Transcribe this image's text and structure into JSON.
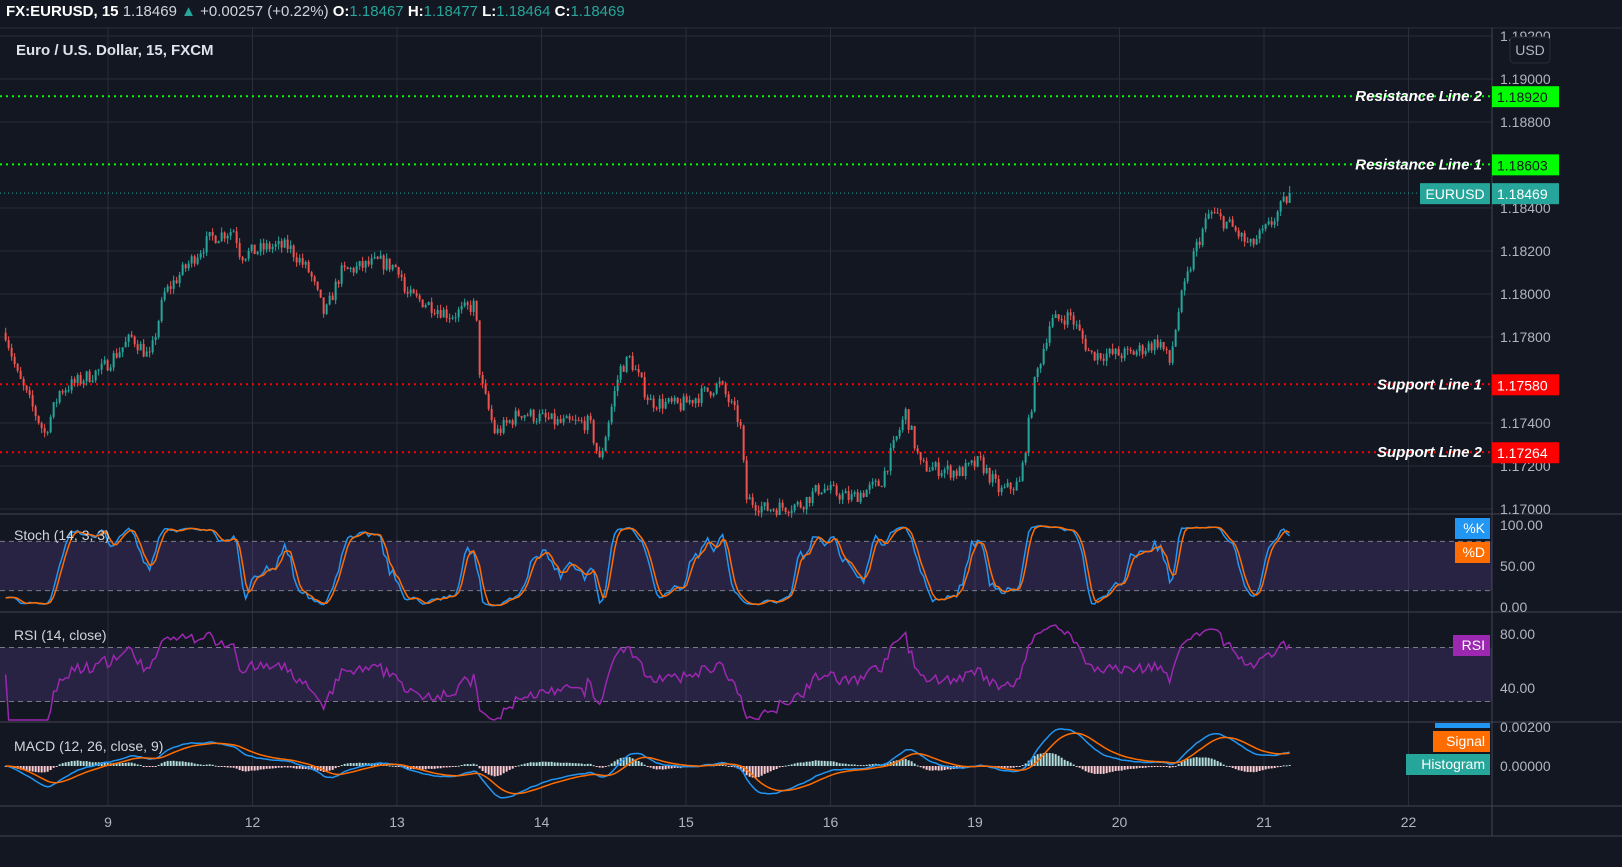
{
  "header": {
    "symbol": "FX:EURUSD, 15",
    "last": "1.18469",
    "change": "+0.00257 (+0.22%)",
    "o_label": "O:",
    "o": "1.18467",
    "h_label": "H:",
    "h": "1.18477",
    "l_label": "L:",
    "l": "1.18464",
    "c_label": "C:",
    "c": "1.18469"
  },
  "colors": {
    "background": "#131722",
    "up": "#26a69a",
    "down": "#ef5350",
    "resistance": "#00ff00",
    "support": "#ff0000",
    "k": "#2196f3",
    "d": "#ff6d00",
    "rsi": "#9c27b0"
  },
  "chart_data": {
    "type": "candlestick",
    "title": "Euro / U.S. Dollar, 15, FXCM",
    "currency": "USD",
    "x_ticks": [
      "9",
      "12",
      "13",
      "14",
      "15",
      "16",
      "19",
      "20",
      "21",
      "22"
    ],
    "y_ticks": [
      "1.19200",
      "1.19000",
      "1.18800",
      "1.18400",
      "1.18200",
      "1.18000",
      "1.17800",
      "1.17400",
      "1.17200",
      "1.17000"
    ],
    "ylim": [
      1.17,
      1.192
    ],
    "grid": true,
    "price_path": [
      [
        "8 07:00",
        1.1782
      ],
      [
        "8 09:00",
        1.1762
      ],
      [
        "8 13:30",
        1.1735
      ],
      [
        "8 16:00",
        1.1755
      ],
      [
        "8 23:00",
        1.1765
      ],
      [
        "9 04:00",
        1.178
      ],
      [
        "9 07:00",
        1.177
      ],
      [
        "9 09:20",
        1.18
      ],
      [
        "9 13:40",
        1.1815
      ],
      [
        "9 17:00",
        1.1826
      ],
      [
        "9 21:00",
        1.183
      ],
      [
        "9 22:00",
        1.1818
      ],
      [
        "12 03:00",
        1.1822
      ],
      [
        "12 06:00",
        1.1822
      ],
      [
        "12 09:30",
        1.181
      ],
      [
        "12 12:00",
        1.179
      ],
      [
        "12 14:40",
        1.181
      ],
      [
        "12 21:00",
        1.1815
      ],
      [
        "13 00:30",
        1.1812
      ],
      [
        "13 01:20",
        1.18
      ],
      [
        "13 05:30",
        1.1795
      ],
      [
        "13 09:00",
        1.179
      ],
      [
        "13 13:00",
        1.1795
      ],
      [
        "13 13:50",
        1.176
      ],
      [
        "13 16:20",
        1.1735
      ],
      [
        "13 20:30",
        1.1745
      ],
      [
        "14 03:00",
        1.174
      ],
      [
        "14 08:00",
        1.174
      ],
      [
        "14 09:40",
        1.1722
      ],
      [
        "14 13:00",
        1.1765
      ],
      [
        "14 14:40",
        1.177
      ],
      [
        "14 18:00",
        1.175
      ],
      [
        "14 23:00",
        1.1748
      ],
      [
        "15 05:40",
        1.1758
      ],
      [
        "15 09:00",
        1.174
      ],
      [
        "15 10:00",
        1.1705
      ],
      [
        "15 13:10",
        1.17
      ],
      [
        "15 19:00",
        1.1702
      ],
      [
        "15 22:20",
        1.171
      ],
      [
        "16 03:20",
        1.1705
      ],
      [
        "16 08:20",
        1.1712
      ],
      [
        "16 12:30",
        1.1745
      ],
      [
        "16 15:00",
        1.172
      ],
      [
        "16 21:30",
        1.1717
      ],
      [
        "19 00:50",
        1.1722
      ],
      [
        "19 04:10",
        1.1708
      ],
      [
        "19 07:30",
        1.1712
      ],
      [
        "19 10:00",
        1.176
      ],
      [
        "19 12:30",
        1.1787
      ],
      [
        "19 15:50",
        1.179
      ],
      [
        "19 19:10",
        1.1772
      ],
      [
        "20 01:40",
        1.1772
      ],
      [
        "20 06:40",
        1.1778
      ],
      [
        "20 08:20",
        1.1768
      ],
      [
        "20 10:00",
        1.1795
      ],
      [
        "20 12:30",
        1.182
      ],
      [
        "20 15:00",
        1.1838
      ],
      [
        "20 18:20",
        1.1832
      ],
      [
        "20 21:40",
        1.1822
      ],
      [
        "21 01:00",
        1.1832
      ],
      [
        "21 04:20",
        1.18469
      ]
    ],
    "lines": [
      {
        "label": "Resistance Line 2",
        "value": "1.18920",
        "price": 1.1892,
        "kind": "resistance"
      },
      {
        "label": "Resistance Line 1",
        "value": "1.18603",
        "price": 1.18603,
        "kind": "resistance"
      },
      {
        "label": "Support Line 1",
        "value": "1.17580",
        "price": 1.1758,
        "kind": "support"
      },
      {
        "label": "Support Line 2",
        "value": "1.17264",
        "price": 1.17264,
        "kind": "support"
      }
    ],
    "last_price": {
      "label": "EURUSD",
      "value": "1.18469",
      "price": 1.18469
    },
    "stoch": {
      "title": "Stoch (14, 3, 3)",
      "k_label": "%K",
      "d_label": "%D",
      "ticks": [
        "100.00",
        "50.00",
        "0.00"
      ],
      "levels": [
        80,
        20
      ]
    },
    "rsi": {
      "title": "RSI (14, close)",
      "label": "RSI",
      "ticks": [
        "80.00",
        "40.00"
      ],
      "levels": [
        70,
        30
      ]
    },
    "macd": {
      "title": "MACD (12, 26, close, 9)",
      "signal_label": "Signal",
      "hist_label": "Histogram",
      "ticks": [
        "0.00200",
        "0.00000"
      ]
    }
  }
}
